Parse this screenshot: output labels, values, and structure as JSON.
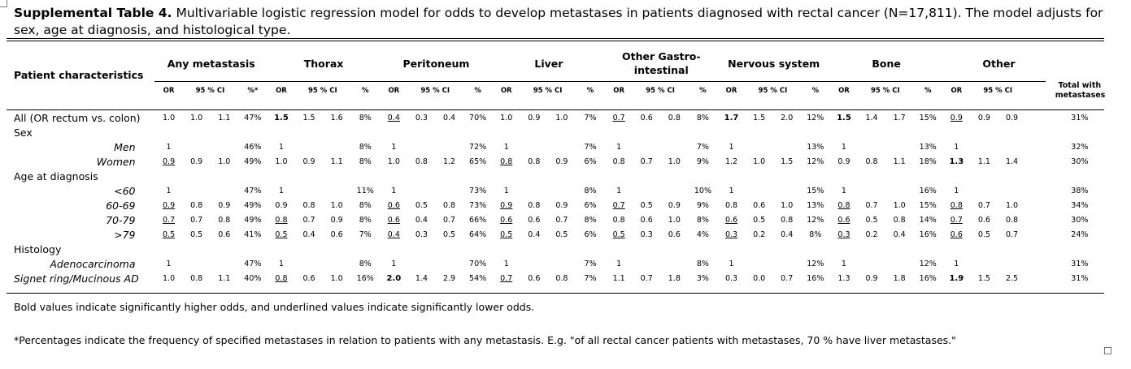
{
  "caption": {
    "label": "Supplemental Table 4.",
    "text": " Multivariable logistic regression model for odds to develop metastases in patients diagnosed with rectal cancer (N=17,811). The model adjusts for sex, age at diagnosis, and histological type."
  },
  "table": {
    "row_header": "Patient characteristics",
    "total_header": "Total with metastases",
    "groups": [
      {
        "name": "Any metastasis",
        "sub": [
          "OR",
          "95 % CI",
          "",
          "%*"
        ]
      },
      {
        "name": "Thorax",
        "sub": [
          "OR",
          "95 % CI",
          "",
          "%"
        ]
      },
      {
        "name": "Peritoneum",
        "sub": [
          "OR",
          "95 % CI",
          "",
          "%"
        ]
      },
      {
        "name": "Liver",
        "sub": [
          "OR",
          "95 % CI",
          "",
          "%"
        ]
      },
      {
        "name": "Other Gastro-intestinal",
        "sub": [
          "OR",
          "95 % CI",
          "",
          "%"
        ]
      },
      {
        "name": "Nervous system",
        "sub": [
          "OR",
          "95 % CI",
          "",
          "%"
        ]
      },
      {
        "name": "Bone",
        "sub": [
          "OR",
          "95 % CI",
          "",
          "%"
        ]
      },
      {
        "name": "Other",
        "sub": [
          "OR",
          "95 % CI",
          "",
          ""
        ]
      }
    ],
    "rows": [
      {
        "label": "All (OR rectum vs. colon)",
        "indent": false,
        "cells": [
          [
            "1.0",
            "1.0",
            "1.1",
            "47%"
          ],
          [
            {
              "v": "1.5",
              "b": true
            },
            "1.5",
            "1.6",
            "8%"
          ],
          [
            {
              "v": "0.4",
              "u": true
            },
            "0.3",
            "0.4",
            "70%"
          ],
          [
            "1.0",
            "0.9",
            "1.0",
            "7%"
          ],
          [
            {
              "v": "0.7",
              "u": true
            },
            "0.6",
            "0.8",
            "8%"
          ],
          [
            {
              "v": "1.7",
              "b": true
            },
            "1.5",
            "2.0",
            "12%"
          ],
          [
            {
              "v": "1.5",
              "b": true
            },
            "1.4",
            "1.7",
            "15%"
          ],
          [
            {
              "v": "0.9",
              "u": true
            },
            "0.9",
            "0.9",
            ""
          ]
        ],
        "total": "31%"
      },
      {
        "label": "Sex",
        "indent": false,
        "section": true
      },
      {
        "label": "Men",
        "indent": true,
        "cells": [
          [
            "1",
            "",
            "",
            "46%"
          ],
          [
            "1",
            "",
            "",
            "8%"
          ],
          [
            "1",
            "",
            "",
            "72%"
          ],
          [
            "1",
            "",
            "",
            "7%"
          ],
          [
            "1",
            "",
            "",
            "7%"
          ],
          [
            "1",
            "",
            "",
            "13%"
          ],
          [
            "1",
            "",
            "",
            "13%"
          ],
          [
            "1",
            "",
            "",
            ""
          ]
        ],
        "total": "32%"
      },
      {
        "label": "Women",
        "indent": true,
        "cells": [
          [
            {
              "v": "0.9",
              "u": true
            },
            "0.9",
            "1.0",
            "49%"
          ],
          [
            "1.0",
            "0.9",
            "1.1",
            "8%"
          ],
          [
            "1.0",
            "0.8",
            "1.2",
            "65%"
          ],
          [
            {
              "v": "0.8",
              "u": true
            },
            "0.8",
            "0.9",
            "6%"
          ],
          [
            "0.8",
            "0.7",
            "1.0",
            "9%"
          ],
          [
            "1.2",
            "1.0",
            "1.5",
            "12%"
          ],
          [
            "0.9",
            "0.8",
            "1.1",
            "18%"
          ],
          [
            {
              "v": "1.3",
              "b": true
            },
            "1.1",
            "1.4",
            ""
          ]
        ],
        "total": "30%"
      },
      {
        "label": "Age at diagnosis",
        "indent": false,
        "section": true
      },
      {
        "label": "<60",
        "indent": true,
        "cells": [
          [
            "1",
            "",
            "",
            "47%"
          ],
          [
            "1",
            "",
            "",
            "11%"
          ],
          [
            "1",
            "",
            "",
            "73%"
          ],
          [
            "1",
            "",
            "",
            "8%"
          ],
          [
            "1",
            "",
            "",
            "10%"
          ],
          [
            "1",
            "",
            "",
            "15%"
          ],
          [
            "1",
            "",
            "",
            "16%"
          ],
          [
            "1",
            "",
            "",
            ""
          ]
        ],
        "total": "38%"
      },
      {
        "label": "60-69",
        "indent": true,
        "cells": [
          [
            {
              "v": "0.9",
              "u": true
            },
            "0.8",
            "0.9",
            "49%"
          ],
          [
            "0.9",
            "0.8",
            "1.0",
            "8%"
          ],
          [
            {
              "v": "0.6",
              "u": true
            },
            "0.5",
            "0.8",
            "73%"
          ],
          [
            {
              "v": "0.9",
              "u": true
            },
            "0.8",
            "0.9",
            "6%"
          ],
          [
            {
              "v": "0.7",
              "u": true
            },
            "0.5",
            "0.9",
            "9%"
          ],
          [
            "0.8",
            "0.6",
            "1.0",
            "13%"
          ],
          [
            {
              "v": "0.8",
              "u": true
            },
            "0.7",
            "1.0",
            "15%"
          ],
          [
            {
              "v": "0.8",
              "u": true
            },
            "0.7",
            "1.0",
            ""
          ]
        ],
        "total": "34%"
      },
      {
        "label": "70-79",
        "indent": true,
        "cells": [
          [
            {
              "v": "0.7",
              "u": true
            },
            "0.7",
            "0.8",
            "49%"
          ],
          [
            {
              "v": "0.8",
              "u": true
            },
            "0.7",
            "0.9",
            "8%"
          ],
          [
            {
              "v": "0.6",
              "u": true
            },
            "0.4",
            "0.7",
            "66%"
          ],
          [
            {
              "v": "0.6",
              "u": true
            },
            "0.6",
            "0.7",
            "8%"
          ],
          [
            "0.8",
            "0.6",
            "1.0",
            "8%"
          ],
          [
            {
              "v": "0.6",
              "u": true
            },
            "0.5",
            "0.8",
            "12%"
          ],
          [
            {
              "v": "0.6",
              "u": true
            },
            "0.5",
            "0.8",
            "14%"
          ],
          [
            {
              "v": "0.7",
              "u": true
            },
            "0.6",
            "0.8",
            ""
          ]
        ],
        "total": "30%"
      },
      {
        "label": ">79",
        "indent": true,
        "cells": [
          [
            {
              "v": "0.5",
              "u": true
            },
            "0.5",
            "0.6",
            "41%"
          ],
          [
            {
              "v": "0.5",
              "u": true
            },
            "0.4",
            "0.6",
            "7%"
          ],
          [
            {
              "v": "0.4",
              "u": true
            },
            "0.3",
            "0.5",
            "64%"
          ],
          [
            {
              "v": "0.5",
              "u": true
            },
            "0.4",
            "0.5",
            "6%"
          ],
          [
            {
              "v": "0.5",
              "u": true
            },
            "0.3",
            "0.6",
            "4%"
          ],
          [
            {
              "v": "0.3",
              "u": true
            },
            "0.2",
            "0.4",
            "8%"
          ],
          [
            {
              "v": "0.3",
              "u": true
            },
            "0.2",
            "0.4",
            "16%"
          ],
          [
            {
              "v": "0.6",
              "u": true
            },
            "0.5",
            "0.7",
            ""
          ]
        ],
        "total": "24%"
      },
      {
        "label": "Histology",
        "indent": false,
        "section": true
      },
      {
        "label": "Adenocarcinoma",
        "indent": true,
        "cells": [
          [
            "1",
            "",
            "",
            "47%"
          ],
          [
            "1",
            "",
            "",
            "8%"
          ],
          [
            "1",
            "",
            "",
            "70%"
          ],
          [
            "1",
            "",
            "",
            "7%"
          ],
          [
            "1",
            "",
            "",
            "8%"
          ],
          [
            "1",
            "",
            "",
            "12%"
          ],
          [
            "1",
            "",
            "",
            "12%"
          ],
          [
            "1",
            "",
            "",
            ""
          ]
        ],
        "total": "31%"
      },
      {
        "label": "Signet ring/Mucinous AD",
        "indent": true,
        "cells": [
          [
            "1.0",
            "0.8",
            "1.1",
            "40%"
          ],
          [
            {
              "v": "0.8",
              "u": true
            },
            "0.6",
            "1.0",
            "16%"
          ],
          [
            {
              "v": "2.0",
              "b": true
            },
            "1.4",
            "2.9",
            "54%"
          ],
          [
            {
              "v": "0.7",
              "u": true
            },
            "0.6",
            "0.8",
            "7%"
          ],
          [
            "1.1",
            "0.7",
            "1.8",
            "3%"
          ],
          [
            "0.3",
            "0.0",
            "0.7",
            "16%"
          ],
          [
            "1.3",
            "0.9",
            "1.8",
            "16%"
          ],
          [
            {
              "v": "1.9",
              "b": true
            },
            "1.5",
            "2.5",
            ""
          ]
        ],
        "total": "31%"
      }
    ]
  },
  "footnotes": {
    "bold_note": "Bold values indicate significantly higher odds, and underlined values indicate significantly lower odds.",
    "percent_note": "*Percentages indicate the frequency of specified metastases in relation to patients with any metastasis. E.g. \"of all rectal cancer patients with metastases, 70 % have liver metastases.\""
  }
}
